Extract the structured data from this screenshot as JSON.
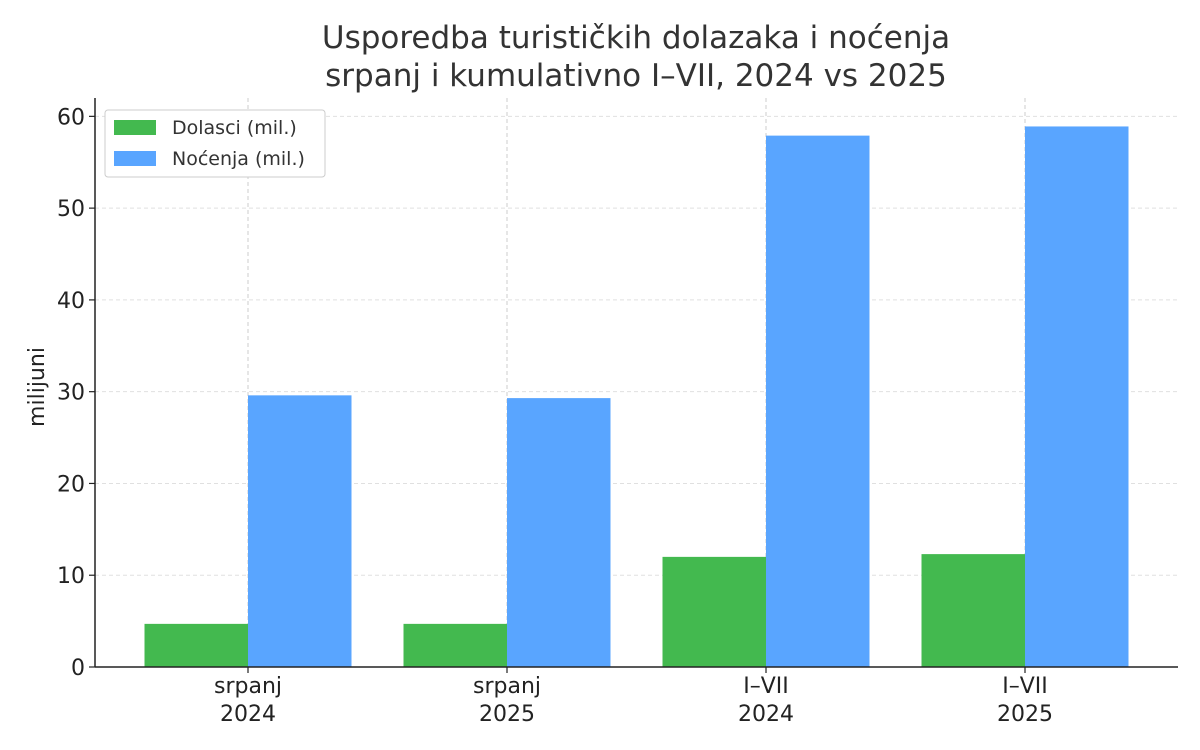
{
  "chart_data": {
    "type": "bar",
    "title": "Usporedba turističkih dolazaka i noćenja",
    "subtitle": "srpanj i kumulativno I–VII, 2024 vs 2025",
    "ylabel": "milijuni",
    "xlabel": "",
    "categories": [
      [
        "srpanj",
        "2024"
      ],
      [
        "srpanj",
        "2025"
      ],
      [
        "I–VII",
        "2024"
      ],
      [
        "I–VII",
        "2025"
      ]
    ],
    "series": [
      {
        "name": "Dolasci (mil.)",
        "color": "#43b94f",
        "values": [
          4.7,
          4.7,
          12.0,
          12.3
        ]
      },
      {
        "name": "Noćenja (mil.)",
        "color": "#59a5ff",
        "values": [
          29.6,
          29.3,
          57.9,
          58.9
        ]
      }
    ],
    "ylim": [
      0,
      62
    ],
    "yticks": [
      0,
      10,
      20,
      30,
      40,
      50,
      60
    ],
    "grid": true,
    "legend": "top-left"
  }
}
